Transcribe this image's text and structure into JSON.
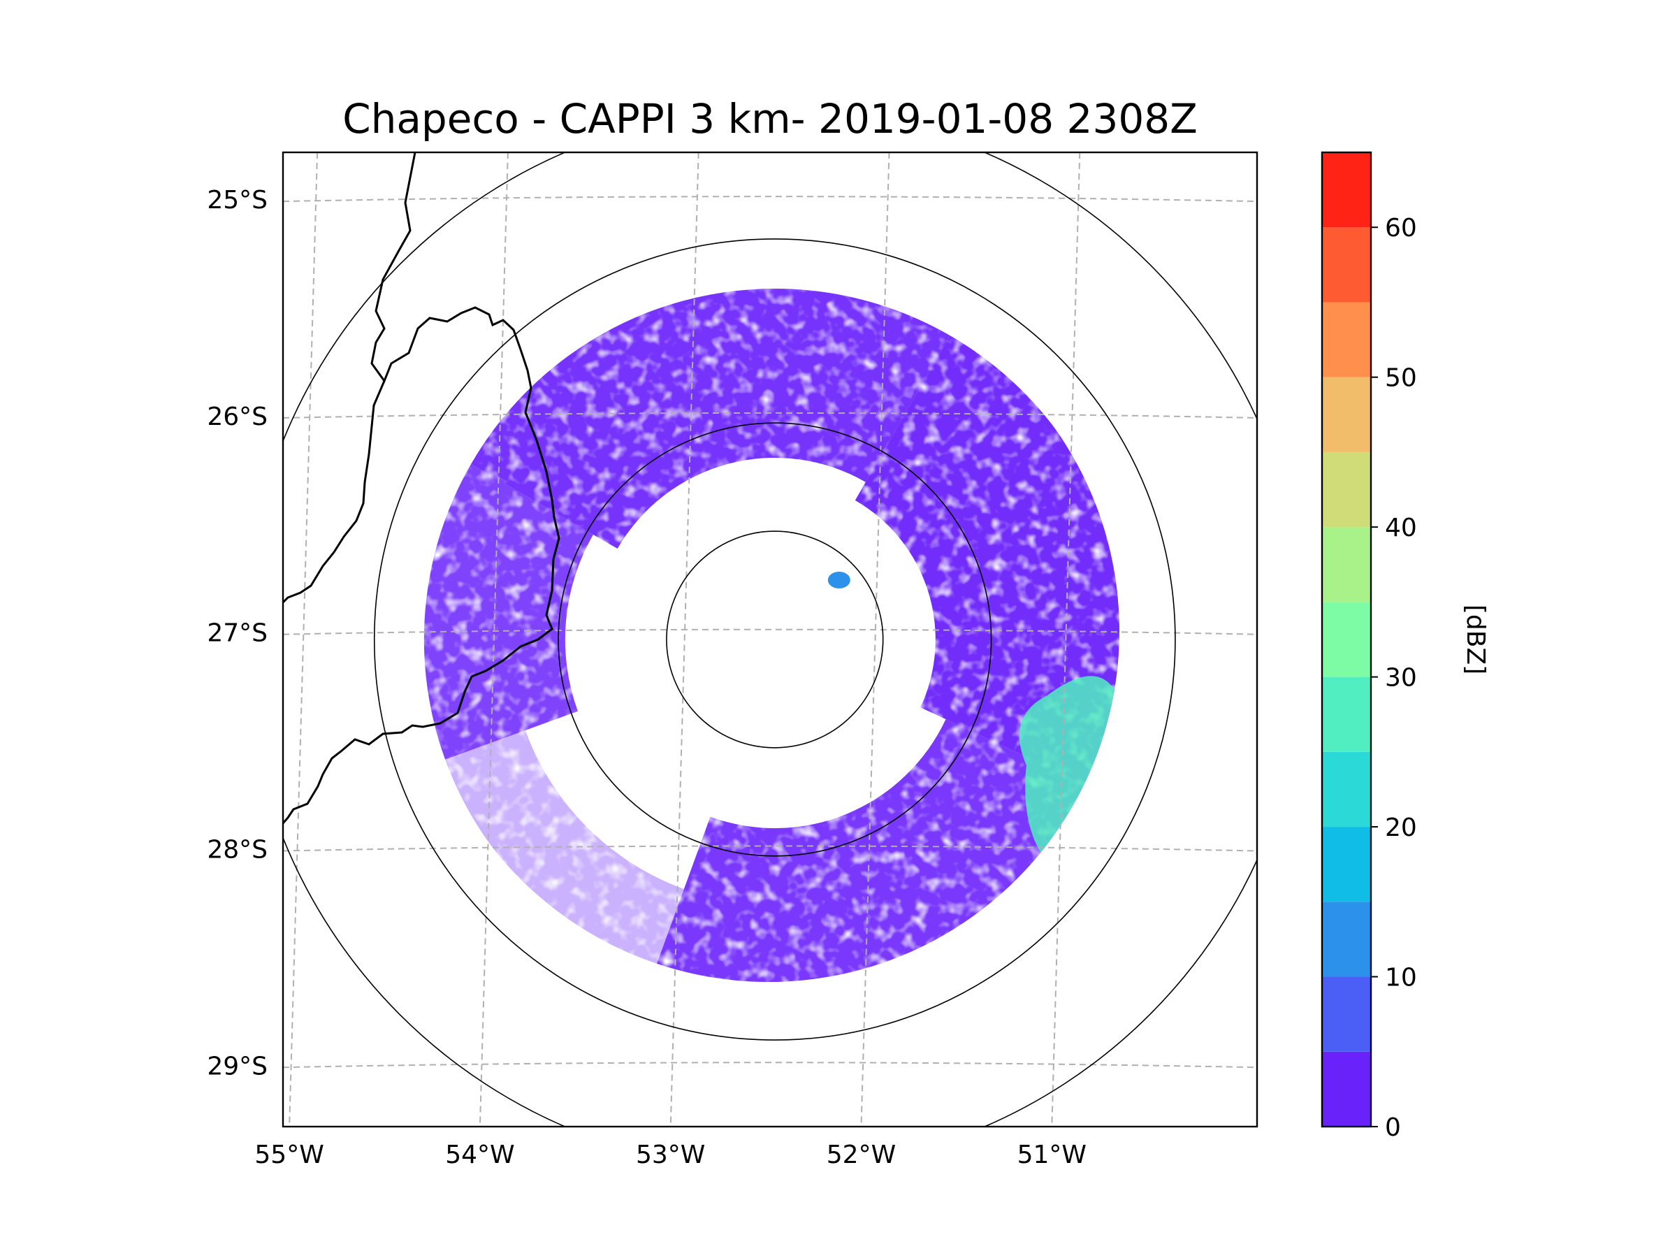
{
  "chart_data": {
    "type": "heatmap",
    "title": "Chapeco - CAPPI 3 km- 2019-01-08 2308Z",
    "xlabel": "",
    "ylabel": "",
    "x_ticks": [
      "55°W",
      "54°W",
      "53°W",
      "52°W",
      "51°W"
    ],
    "y_ticks": [
      "25°S",
      "26°S",
      "27°S",
      "28°S",
      "29°S"
    ],
    "xlim": [
      -55.18,
      -50.07
    ],
    "ylim": [
      -29.28,
      -24.78
    ],
    "grid": true,
    "radar_center": {
      "lon": -52.6,
      "lat": -27.03
    },
    "range_rings_deg": [
      0.5,
      1.0,
      1.85,
      2.45
    ],
    "colorbar": {
      "label": "[dBZ]",
      "ticks": [
        "0",
        "10",
        "20",
        "30",
        "40",
        "50",
        "60"
      ],
      "tick_values": [
        0,
        10,
        20,
        30,
        40,
        50,
        60
      ],
      "vmin": 0,
      "vmax": 65,
      "bins": [
        {
          "from": 0,
          "to": 5,
          "color": "#6a22fb"
        },
        {
          "from": 5,
          "to": 10,
          "color": "#4b5ef6"
        },
        {
          "from": 10,
          "to": 15,
          "color": "#2c91ea"
        },
        {
          "from": 15,
          "to": 20,
          "color": "#0fbde6"
        },
        {
          "from": 20,
          "to": 25,
          "color": "#2bdad6"
        },
        {
          "from": 25,
          "to": 30,
          "color": "#50eec0"
        },
        {
          "from": 30,
          "to": 35,
          "color": "#7efca5"
        },
        {
          "from": 35,
          "to": 40,
          "color": "#a8f289"
        },
        {
          "from": 40,
          "to": 45,
          "color": "#cfdc78"
        },
        {
          "from": 45,
          "to": 50,
          "color": "#f2bd6a"
        },
        {
          "from": 50,
          "to": 55,
          "color": "#ff8f4c"
        },
        {
          "from": 55,
          "to": 60,
          "color": "#ff5b33"
        },
        {
          "from": 60,
          "to": 65,
          "color": "#ff2316"
        }
      ]
    },
    "echo_regions": [
      {
        "name": "north-sector",
        "dbz": 3
      },
      {
        "name": "east-sector",
        "dbz": 4
      },
      {
        "name": "south-band",
        "dbz": 3
      },
      {
        "name": "west-sector",
        "dbz": 3
      },
      {
        "name": "east-convective-core",
        "dbz": 28
      },
      {
        "name": "isolated-cell-ne",
        "dbz": 12
      }
    ]
  }
}
